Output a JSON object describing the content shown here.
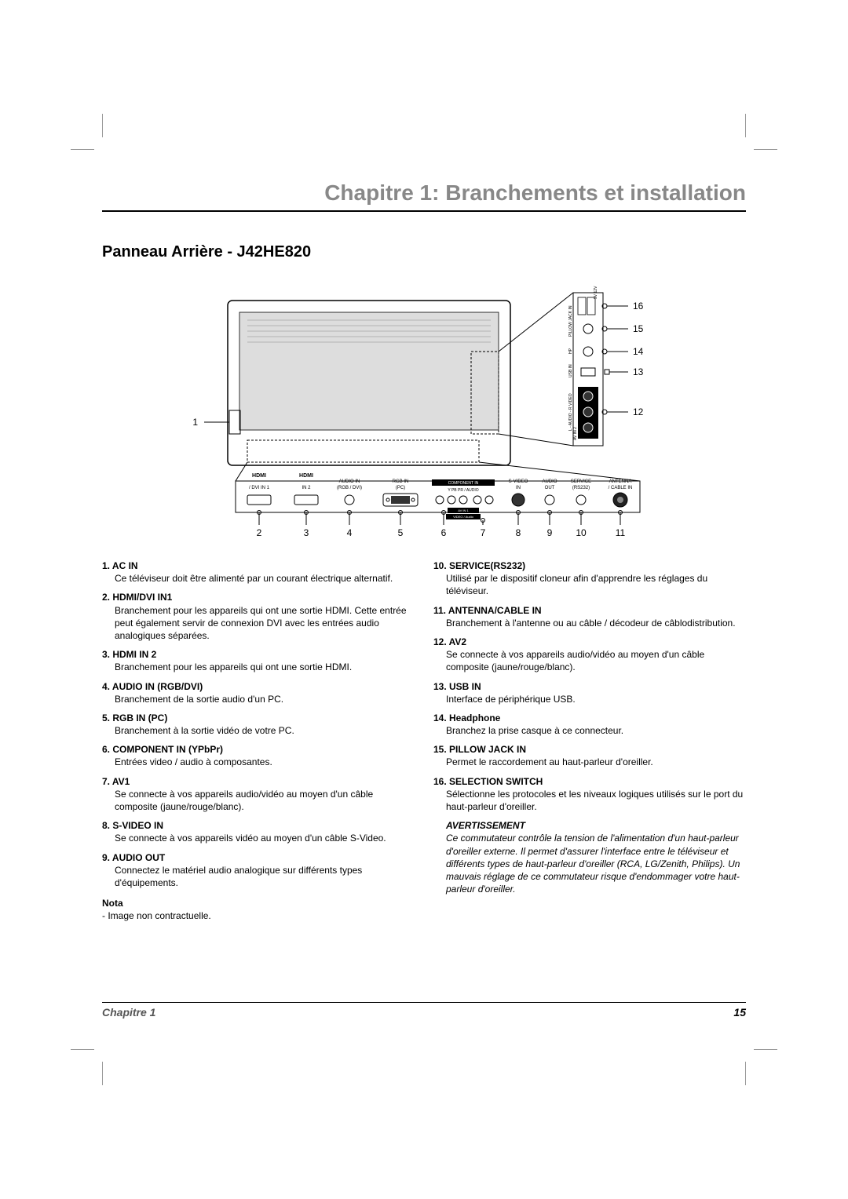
{
  "header": {
    "chapter_title": "Chapitre 1: Branchements et installation"
  },
  "section": {
    "title": "Panneau Arrière - J42HE820"
  },
  "diagram": {
    "bg": "#ffffff",
    "stroke": "#000000",
    "callouts_side": [
      {
        "num": "16",
        "label_top": "5V",
        "label_bot": "12V"
      },
      {
        "num": "15",
        "label": "PILLOW JACK IN"
      },
      {
        "num": "14",
        "label": "HP"
      },
      {
        "num": "13",
        "label": "USB IN"
      },
      {
        "num": "12",
        "label": "AV IN 2"
      }
    ],
    "bottom_ports": [
      {
        "num": "2",
        "label_top": "HDMI",
        "label_bot": "/ DVI IN 1"
      },
      {
        "num": "3",
        "label_top": "HDMI",
        "label_bot": "IN 2"
      },
      {
        "num": "4",
        "label_top": "AUDIO IN",
        "label_bot": "(RGB / DVI)"
      },
      {
        "num": "5",
        "label_top": "RGB IN",
        "label_bot": "(PC)"
      },
      {
        "num": "6",
        "label_top": "COMPONENT IN",
        "label_bot": "Y PB PR / AUDIO",
        "extra": "AV IN 1  VIDEO / Audio"
      },
      {
        "num": "7",
        "label_top": "",
        "label_bot": ""
      },
      {
        "num": "8",
        "label_top": "S-VIDEO",
        "label_bot": "IN"
      },
      {
        "num": "9",
        "label_top": "AUDIO",
        "label_bot": "OUT"
      },
      {
        "num": "10",
        "label_top": "SERVICE",
        "label_bot": "(RS232)"
      },
      {
        "num": "11",
        "label_top": "ANTENNA",
        "label_bot": "/ CABLE IN"
      }
    ],
    "left_callout": {
      "num": "1"
    }
  },
  "left_items": [
    {
      "n": "1.",
      "head": "AC IN",
      "body": "Ce téléviseur doit être alimenté par un courant électrique alternatif."
    },
    {
      "n": "2.",
      "head": "HDMI/DVI IN1",
      "body": "Branchement pour les appareils qui ont une sortie HDMI.\nCette entrée peut également servir de connexion DVI avec les entrées audio analogiques séparées."
    },
    {
      "n": "3.",
      "head": "HDMI IN 2",
      "body": "Branchement pour les appareils qui ont une sortie HDMI."
    },
    {
      "n": "4.",
      "head": "AUDIO IN (RGB/DVI)",
      "body": "Branchement de la sortie audio d'un PC."
    },
    {
      "n": "5.",
      "head": "RGB IN (PC)",
      "body": "Branchement à la sortie vidéo de votre PC."
    },
    {
      "n": "6.",
      "head": "COMPONENT IN (YPbPr)",
      "body": "Entrées video / audio à composantes."
    },
    {
      "n": "7.",
      "head": "AV1",
      "body": "Se connecte à vos appareils audio/vidéo au moyen d'un câble composite (jaune/rouge/blanc)."
    },
    {
      "n": "8.",
      "head": "S-VIDEO IN",
      "body": "Se connecte à vos appareils vidéo au moyen d'un câble S-Video."
    },
    {
      "n": "9.",
      "head": "AUDIO OUT",
      "body": "Connectez le matériel audio analogique sur différents types d'équipements."
    }
  ],
  "right_items": [
    {
      "n": "10.",
      "head": "SERVICE(RS232)",
      "body": "Utilisé par le dispositif cloneur afin d'apprendre les réglages du téléviseur."
    },
    {
      "n": "11.",
      "head": "ANTENNA/CABLE IN",
      "body": "Branchement à l'antenne ou au câble / décodeur de câblodistribution."
    },
    {
      "n": "12.",
      "head": "AV2",
      "body": "Se connecte à vos appareils audio/vidéo au moyen d'un câble composite (jaune/rouge/blanc)."
    },
    {
      "n": "13.",
      "head": "USB IN",
      "body": "Interface de périphérique USB."
    },
    {
      "n": "14.",
      "head": "Headphone",
      "body": "Branchez la prise casque à ce connecteur."
    },
    {
      "n": "15.",
      "head": "PILLOW JACK IN",
      "body": "Permet le raccordement au haut-parleur d'oreiller."
    },
    {
      "n": "16.",
      "head": "SELECTION SWITCH",
      "body": "Sélectionne les protocoles et les niveaux logiques utilisés sur le port du haut-parleur d'oreiller."
    }
  ],
  "warning": {
    "head": "AVERTISSEMENT",
    "body": "Ce commutateur contrôle la tension de l'alimentation d'un haut-parleur d'oreiller externe. Il permet d'assurer l'interface entre le téléviseur et différents types de haut-parleur d'oreiller (RCA, LG/Zenith, Philips). Un mauvais réglage de ce commutateur risque d'endommager votre haut-parleur d'oreiller."
  },
  "nota": {
    "head": "Nota",
    "body": "-  Image non contractuelle."
  },
  "footer": {
    "chapter": "Chapitre 1",
    "page": "15"
  },
  "style": {
    "header_color": "#888888",
    "text_color": "#000000",
    "fontsize_header": 28,
    "fontsize_section": 20,
    "fontsize_body": 12,
    "fontsize_footer": 14
  }
}
